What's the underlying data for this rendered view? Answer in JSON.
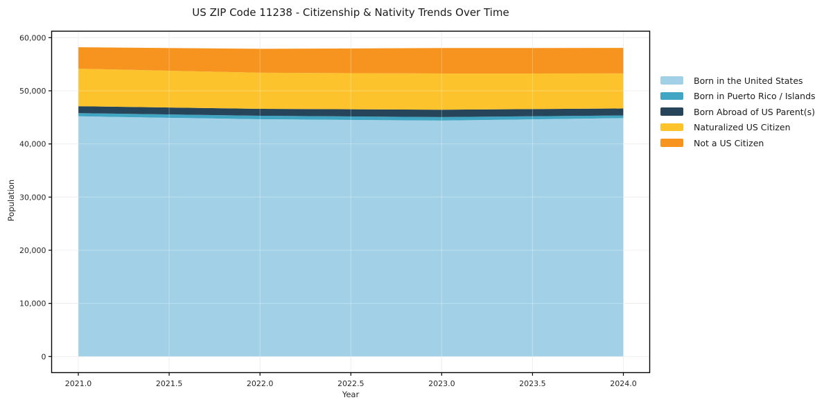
{
  "chart_data": {
    "type": "area",
    "stacked": true,
    "title": "US ZIP Code 11238 - Citizenship & Nativity Trends Over Time",
    "xlabel": "Year",
    "ylabel": "Population",
    "x": [
      2021,
      2022,
      2023,
      2024
    ],
    "series": [
      {
        "name": "Born in the United States",
        "color": "#a2d1e7",
        "values": [
          45200,
          44650,
          44400,
          44850
        ]
      },
      {
        "name": "Born in Puerto Rico / Islands",
        "color": "#41a6c4",
        "values": [
          600,
          650,
          650,
          520
        ]
      },
      {
        "name": "Born Abroad of US Parent(s)",
        "color": "#27455a",
        "values": [
          1300,
          1300,
          1400,
          1300
        ]
      },
      {
        "name": "Naturalized US Citizen",
        "color": "#fcc32d",
        "values": [
          7050,
          6800,
          6800,
          6600
        ]
      },
      {
        "name": "Not a US Citizen",
        "color": "#f7941f",
        "values": [
          4050,
          4500,
          4800,
          4800
        ]
      }
    ],
    "x_ticks": {
      "values": [
        2021,
        2021.5,
        2022,
        2022.5,
        2023,
        2023.5,
        2024
      ],
      "labels": [
        "2021.0",
        "2021.5",
        "2022.0",
        "2022.5",
        "2023.0",
        "2023.5",
        "2024.0"
      ]
    },
    "y_ticks": {
      "values": [
        0,
        10000,
        20000,
        30000,
        40000,
        50000,
        60000
      ],
      "labels": [
        "0",
        "10,000",
        "20,000",
        "30,000",
        "40,000",
        "50,000",
        "60,000"
      ]
    },
    "xlim": [
      2020.85,
      2024.15
    ],
    "ylim": [
      -3050,
      61300
    ],
    "grid": true,
    "legend_position": "right",
    "colors": {
      "grid": "#e8e8e8",
      "axis": "#000000",
      "tick_text": "#262626",
      "background": "#ffffff"
    }
  }
}
